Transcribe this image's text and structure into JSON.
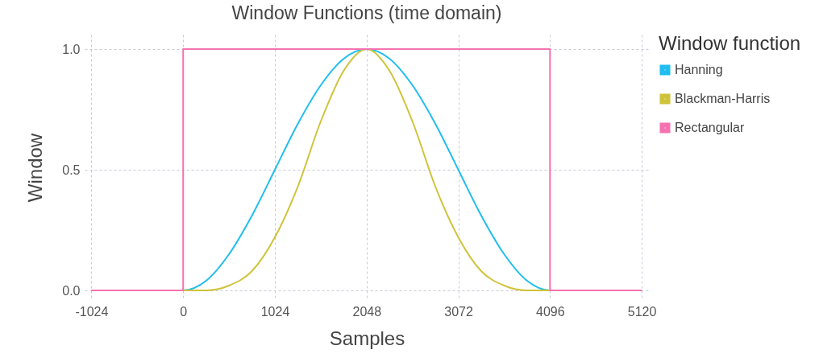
{
  "chart_data": {
    "type": "line",
    "title": "Window Functions (time domain)",
    "xlabel": "Samples",
    "ylabel": "Window",
    "legend_title": "Window function",
    "legend": "right",
    "grid": true,
    "xlim": [
      -1100,
      5200
    ],
    "ylim": [
      -0.04,
      1.06
    ],
    "xticks": [
      -1024,
      0,
      1024,
      2048,
      3072,
      4096,
      5120
    ],
    "yticks": [
      {
        "value": 0,
        "label": "0.0"
      },
      {
        "value": 0.5,
        "label": "0.5"
      },
      {
        "value": 1,
        "label": "1.0"
      }
    ],
    "series": [
      {
        "name": "Hanning",
        "color": "#1fbdf0",
        "x": [
          -1024,
          0,
          256,
          512,
          768,
          1024,
          1280,
          1536,
          1792,
          2048,
          2304,
          2560,
          2816,
          3072,
          3328,
          3584,
          3840,
          4096,
          5120
        ],
        "values": [
          0,
          0,
          0.04,
          0.15,
          0.31,
          0.5,
          0.69,
          0.85,
          0.96,
          1,
          0.96,
          0.85,
          0.69,
          0.5,
          0.31,
          0.15,
          0.04,
          0,
          0
        ]
      },
      {
        "name": "Blackman-Harris",
        "color": "#cfc33a",
        "x": [
          -1024,
          0,
          256,
          512,
          768,
          1024,
          1280,
          1536,
          1792,
          2048,
          2304,
          2560,
          2816,
          3072,
          3328,
          3584,
          3840,
          4096,
          5120
        ],
        "values": [
          0,
          0,
          0.0,
          0.02,
          0.08,
          0.22,
          0.43,
          0.7,
          0.91,
          1,
          0.91,
          0.7,
          0.43,
          0.22,
          0.08,
          0.02,
          0.0,
          0,
          0
        ]
      },
      {
        "name": "Rectangular",
        "color": "#f472b0",
        "x": [
          -1024,
          0,
          0,
          4096,
          4096,
          5120
        ],
        "values": [
          0,
          0,
          1,
          1,
          0,
          0
        ]
      }
    ]
  }
}
